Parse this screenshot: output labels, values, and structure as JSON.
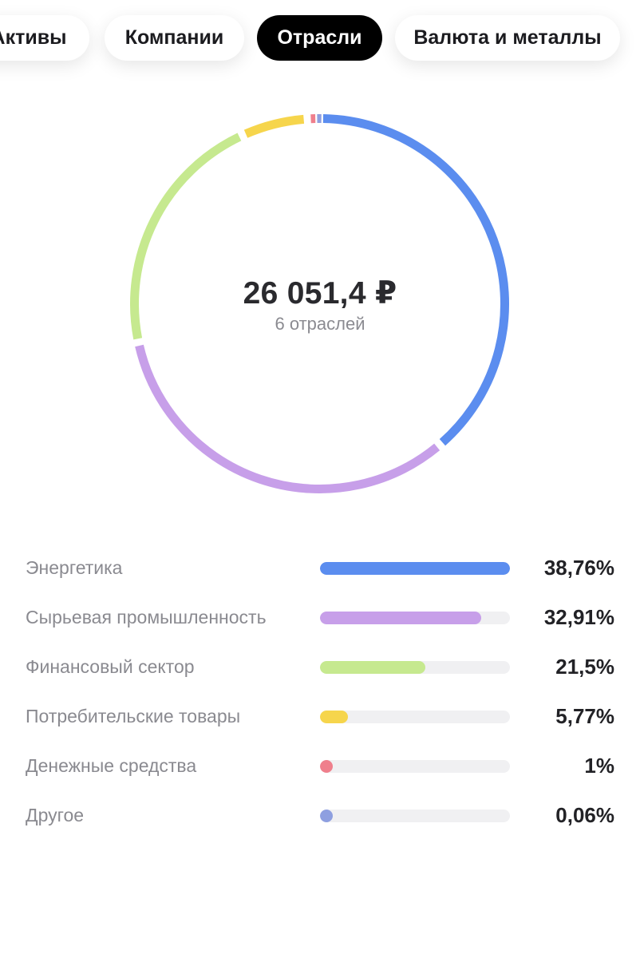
{
  "tabs": [
    {
      "label": "Активы",
      "active": false
    },
    {
      "label": "Компании",
      "active": false
    },
    {
      "label": "Отрасли",
      "active": true
    },
    {
      "label": "Валюта и металлы",
      "active": false
    }
  ],
  "summary": {
    "total": "26 051,4 ₽",
    "subtitle": "6 отраслей"
  },
  "chart_data": {
    "type": "pie",
    "style": "donut",
    "categories": [
      "Энергетика",
      "Сырьевая промышленность",
      "Финансовый сектор",
      "Потребительские товары",
      "Денежные средства",
      "Другое"
    ],
    "values": [
      38.76,
      32.91,
      21.5,
      5.77,
      1,
      0.06
    ],
    "colors": [
      "#5b8def",
      "#c79fe9",
      "#c6e98f",
      "#f6d54c",
      "#ef7f8c",
      "#8e9fe0"
    ],
    "title": "",
    "legend": "below"
  },
  "legend": [
    {
      "label": "Энергетика",
      "percent": "38,76%",
      "value": 38.76,
      "color": "#5b8def"
    },
    {
      "label": "Сырьевая промышленность",
      "percent": "32,91%",
      "value": 32.91,
      "color": "#c79fe9"
    },
    {
      "label": "Финансовый сектор",
      "percent": "21,5%",
      "value": 21.5,
      "color": "#c6e98f"
    },
    {
      "label": "Потребительские товары",
      "percent": "5,77%",
      "value": 5.77,
      "color": "#f6d54c"
    },
    {
      "label": "Денежные средства",
      "percent": "1%",
      "value": 1,
      "color": "#ef7f8c"
    },
    {
      "label": "Другое",
      "percent": "0,06%",
      "value": 0.06,
      "color": "#8e9fe0"
    }
  ]
}
